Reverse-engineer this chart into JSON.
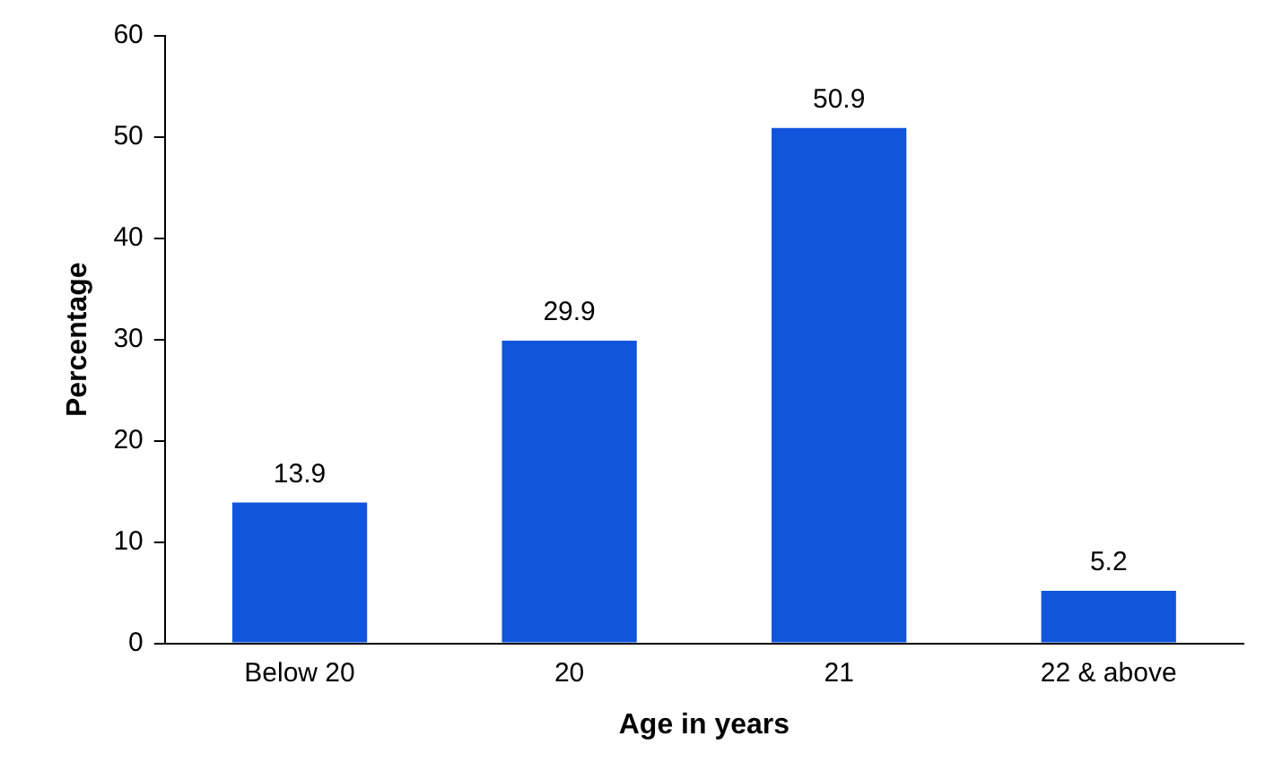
{
  "chart_data": {
    "type": "bar",
    "xlabel": "Age in years",
    "ylabel": "Percentage",
    "categories": [
      "Below 20",
      "20",
      "21",
      "22 & above"
    ],
    "values": [
      13.9,
      29.9,
      50.9,
      5.2
    ],
    "color": "#1155dd",
    "ylim": [
      0,
      60
    ],
    "yticks": [
      0,
      10,
      20,
      30,
      40,
      50,
      60
    ],
    "grid": false,
    "legend": false,
    "data_labels": true
  }
}
